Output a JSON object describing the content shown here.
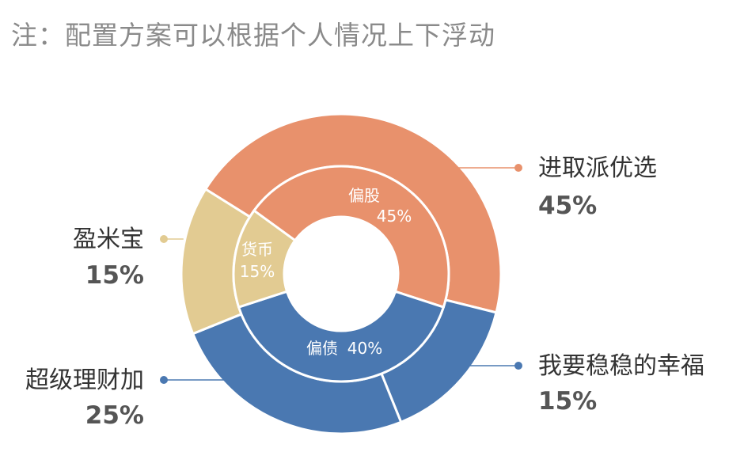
{
  "note": "注：配置方案可以根据个人情况上下浮动",
  "chart_data": {
    "type": "pie",
    "variant": "nested-donut",
    "inner_ring": [
      {
        "name": "偏股",
        "value": 45,
        "label": "45%",
        "color": "#e8916c"
      },
      {
        "name": "偏债",
        "value": 40,
        "label": "40%",
        "color": "#4a78b1"
      },
      {
        "name": "货币",
        "value": 15,
        "label": "15%",
        "color": "#e2cb92"
      }
    ],
    "outer_ring": [
      {
        "name": "进取派优选",
        "value": 45,
        "label": "45%",
        "color": "#e8916c"
      },
      {
        "name": "我要稳稳的幸福",
        "value": 15,
        "label": "15%",
        "color": "#4a78b1"
      },
      {
        "name": "超级理财加",
        "value": 25,
        "label": "25%",
        "color": "#4a78b1"
      },
      {
        "name": "盈米宝",
        "value": 15,
        "label": "15%",
        "color": "#e2cb92"
      }
    ]
  }
}
